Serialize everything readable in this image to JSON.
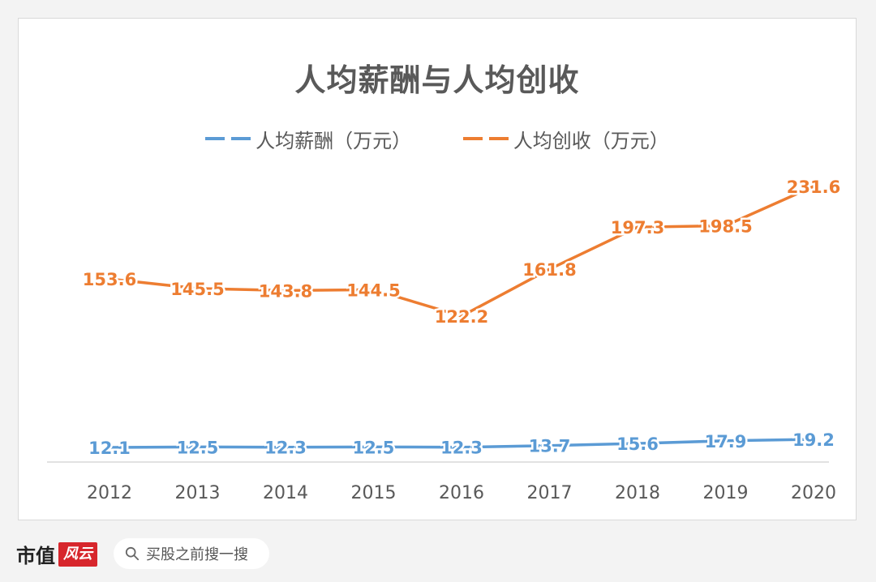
{
  "chart_data": {
    "type": "line",
    "title": "人均薪酬与人均创收",
    "categories": [
      "2012",
      "2013",
      "2014",
      "2015",
      "2016",
      "2017",
      "2018",
      "2019",
      "2020"
    ],
    "series": [
      {
        "name": "人均薪酬（万元）",
        "color": "#5b9bd5",
        "values": [
          12.1,
          12.5,
          12.3,
          12.5,
          12.3,
          13.7,
          15.6,
          17.9,
          19.2
        ]
      },
      {
        "name": "人均创收（万元）",
        "color": "#ed7d31",
        "values": [
          153.6,
          145.5,
          143.8,
          144.5,
          122.2,
          161.8,
          197.3,
          198.5,
          231.6
        ]
      }
    ],
    "grid": false,
    "legend_position": "top"
  },
  "footer": {
    "brand_text": "市值",
    "brand_mark": "风云",
    "search_placeholder": "买股之前搜一搜"
  }
}
